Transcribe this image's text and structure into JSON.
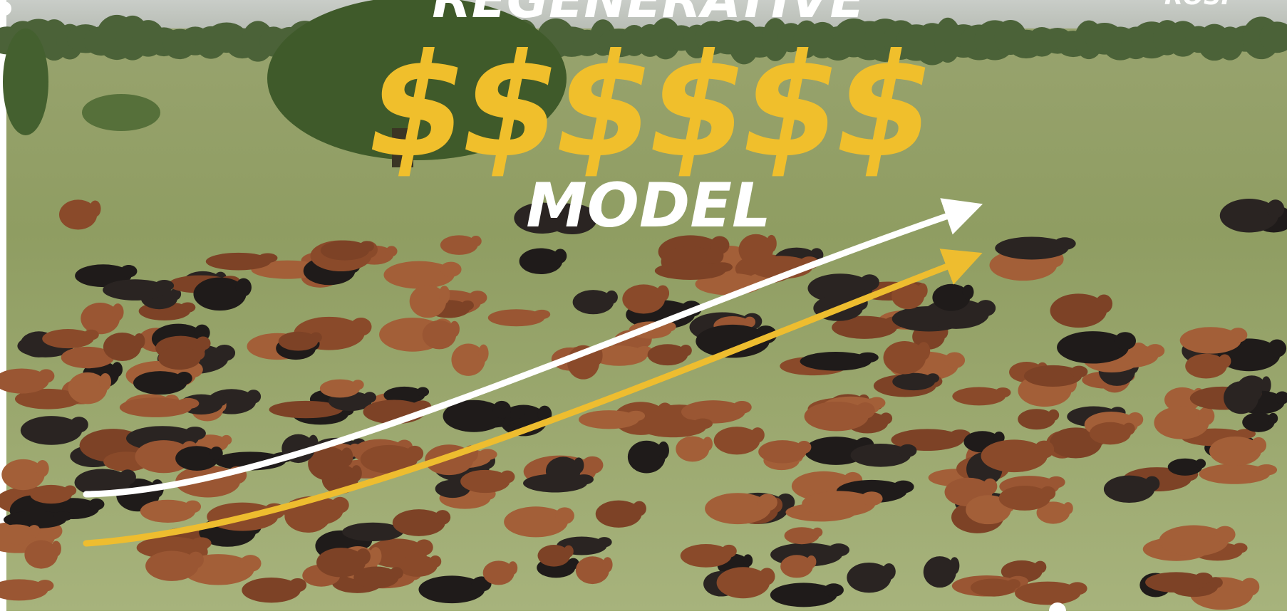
{
  "thumbnail": {
    "headline_top": "REGENERATIVE",
    "headline_money": "$$$$$$",
    "headline_bottom": "MODEL",
    "corner_text": "ROSI"
  }
}
